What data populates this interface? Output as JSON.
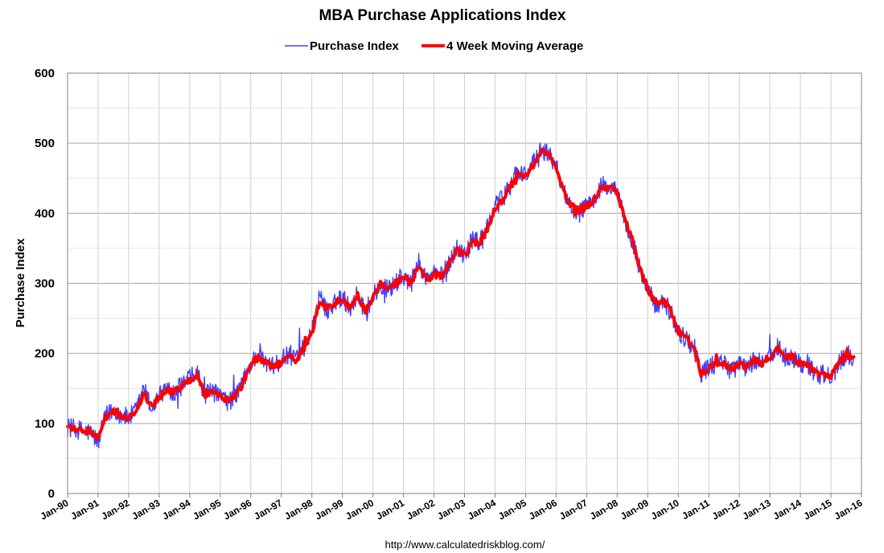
{
  "chart_data": {
    "type": "line",
    "title": "MBA Purchase Applications Index",
    "ylabel": "Purchase Index",
    "xlabel": "",
    "ylim": [
      0,
      600
    ],
    "yticks": [
      "0",
      "100",
      "200",
      "300",
      "400",
      "500",
      "600"
    ],
    "xlim": [
      "1990-01",
      "2016-01"
    ],
    "xticks": [
      "Jan-90",
      "Jan-91",
      "Jan-92",
      "Jan-93",
      "Jan-94",
      "Jan-95",
      "Jan-96",
      "Jan-97",
      "Jan-98",
      "Jan-99",
      "Jan-00",
      "Jan-01",
      "Jan-02",
      "Jan-03",
      "Jan-04",
      "Jan-05",
      "Jan-06",
      "Jan-07",
      "Jan-08",
      "Jan-09",
      "Jan-10",
      "Jan-11",
      "Jan-12",
      "Jan-13",
      "Jan-14",
      "Jan-15",
      "Jan-16"
    ],
    "grid": true,
    "legend_position": "top-center",
    "source": "http://www.calculatedriskblog.com/",
    "series": [
      {
        "name": "Purchase Index",
        "color": "#4040ff",
        "noise": 14,
        "x": [
          "1990-01",
          "1990-04",
          "1990-07",
          "1990-10",
          "1991-01",
          "1991-04",
          "1991-07",
          "1991-10",
          "1992-01",
          "1992-04",
          "1992-07",
          "1992-10",
          "1993-01",
          "1993-04",
          "1993-07",
          "1993-10",
          "1994-01",
          "1994-04",
          "1994-07",
          "1994-10",
          "1995-01",
          "1995-04",
          "1995-07",
          "1995-10",
          "1996-01",
          "1996-04",
          "1996-07",
          "1996-10",
          "1997-01",
          "1997-04",
          "1997-07",
          "1997-10",
          "1998-01",
          "1998-04",
          "1998-07",
          "1998-10",
          "1999-01",
          "1999-04",
          "1999-07",
          "1999-10",
          "2000-01",
          "2000-04",
          "2000-07",
          "2000-10",
          "2001-01",
          "2001-04",
          "2001-07",
          "2001-10",
          "2002-01",
          "2002-04",
          "2002-07",
          "2002-10",
          "2003-01",
          "2003-04",
          "2003-07",
          "2003-10",
          "2004-01",
          "2004-04",
          "2004-07",
          "2004-10",
          "2005-01",
          "2005-04",
          "2005-07",
          "2005-10",
          "2006-01",
          "2006-04",
          "2006-07",
          "2006-10",
          "2007-01",
          "2007-04",
          "2007-07",
          "2007-10",
          "2008-01",
          "2008-04",
          "2008-07",
          "2008-10",
          "2009-01",
          "2009-04",
          "2009-07",
          "2009-10",
          "2010-01",
          "2010-04",
          "2010-07",
          "2010-10",
          "2011-01",
          "2011-04",
          "2011-07",
          "2011-10",
          "2012-01",
          "2012-04",
          "2012-07",
          "2012-10",
          "2013-01",
          "2013-04",
          "2013-07",
          "2013-10",
          "2014-01",
          "2014-04",
          "2014-07",
          "2014-10",
          "2015-01",
          "2015-04",
          "2015-07",
          "2015-10"
        ],
        "values": [
          95,
          92,
          90,
          87,
          74,
          110,
          120,
          112,
          108,
          118,
          150,
          120,
          140,
          150,
          145,
          155,
          165,
          170,
          140,
          145,
          140,
          130,
          140,
          160,
          185,
          200,
          185,
          180,
          190,
          200,
          190,
          210,
          230,
          280,
          260,
          275,
          280,
          265,
          285,
          260,
          280,
          300,
          290,
          300,
          310,
          300,
          330,
          305,
          315,
          310,
          330,
          350,
          340,
          360,
          360,
          380,
          410,
          420,
          440,
          460,
          455,
          470,
          490,
          485,
          470,
          430,
          410,
          400,
          410,
          420,
          440,
          435,
          430,
          390,
          360,
          320,
          290,
          270,
          275,
          260,
          230,
          220,
          210,
          170,
          180,
          185,
          185,
          175,
          185,
          180,
          190,
          185,
          195,
          210,
          195,
          195,
          185,
          185,
          170,
          170,
          165,
          185,
          200,
          195
        ]
      },
      {
        "name": "4 Week Moving Average",
        "color": "#ff0000",
        "noise": 5,
        "x": [
          "1990-01",
          "1990-04",
          "1990-07",
          "1990-10",
          "1991-01",
          "1991-04",
          "1991-07",
          "1991-10",
          "1992-01",
          "1992-04",
          "1992-07",
          "1992-10",
          "1993-01",
          "1993-04",
          "1993-07",
          "1993-10",
          "1994-01",
          "1994-04",
          "1994-07",
          "1994-10",
          "1995-01",
          "1995-04",
          "1995-07",
          "1995-10",
          "1996-01",
          "1996-04",
          "1996-07",
          "1996-10",
          "1997-01",
          "1997-04",
          "1997-07",
          "1997-10",
          "1998-01",
          "1998-04",
          "1998-07",
          "1998-10",
          "1999-01",
          "1999-04",
          "1999-07",
          "1999-10",
          "2000-01",
          "2000-04",
          "2000-07",
          "2000-10",
          "2001-01",
          "2001-04",
          "2001-07",
          "2001-10",
          "2002-01",
          "2002-04",
          "2002-07",
          "2002-10",
          "2003-01",
          "2003-04",
          "2003-07",
          "2003-10",
          "2004-01",
          "2004-04",
          "2004-07",
          "2004-10",
          "2005-01",
          "2005-04",
          "2005-07",
          "2005-10",
          "2006-01",
          "2006-04",
          "2006-07",
          "2006-10",
          "2007-01",
          "2007-04",
          "2007-07",
          "2007-10",
          "2008-01",
          "2008-04",
          "2008-07",
          "2008-10",
          "2009-01",
          "2009-04",
          "2009-07",
          "2009-10",
          "2010-01",
          "2010-04",
          "2010-07",
          "2010-10",
          "2011-01",
          "2011-04",
          "2011-07",
          "2011-10",
          "2012-01",
          "2012-04",
          "2012-07",
          "2012-10",
          "2013-01",
          "2013-04",
          "2013-07",
          "2013-10",
          "2014-01",
          "2014-04",
          "2014-07",
          "2014-10",
          "2015-01",
          "2015-04",
          "2015-07",
          "2015-10"
        ],
        "values": [
          95,
          93,
          90,
          88,
          78,
          108,
          118,
          112,
          108,
          115,
          145,
          122,
          138,
          148,
          145,
          153,
          162,
          168,
          142,
          145,
          140,
          133,
          140,
          158,
          183,
          195,
          185,
          180,
          188,
          198,
          190,
          208,
          228,
          275,
          262,
          272,
          278,
          265,
          282,
          262,
          278,
          298,
          290,
          300,
          308,
          300,
          325,
          305,
          313,
          310,
          328,
          348,
          340,
          358,
          358,
          378,
          405,
          418,
          438,
          455,
          455,
          468,
          488,
          485,
          468,
          430,
          410,
          402,
          410,
          420,
          438,
          435,
          430,
          392,
          360,
          322,
          292,
          272,
          275,
          262,
          232,
          222,
          210,
          172,
          180,
          185,
          185,
          176,
          185,
          180,
          190,
          186,
          195,
          208,
          195,
          195,
          186,
          185,
          172,
          170,
          166,
          185,
          198,
          195
        ]
      }
    ]
  }
}
